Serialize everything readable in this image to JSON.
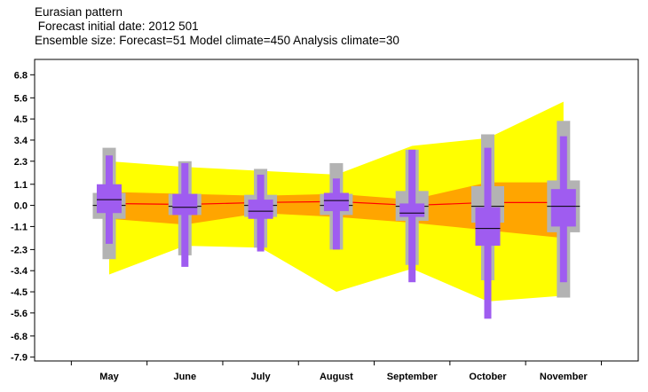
{
  "titles": {
    "line1": "Eurasian pattern",
    "line2": " Forecast initial date: 2012 501",
    "line3": "Ensemble size: Forecast=51 Model climate=450 Analysis climate=30"
  },
  "colors": {
    "climate_outer": "#ffff00",
    "climate_inner": "#ffa500",
    "median_line": "#ff0000",
    "analysis_box": "#b3b3b3",
    "forecast_box": "#9f5cf0",
    "median_tick": "#000000"
  },
  "chart_data": {
    "type": "box",
    "categories": [
      "May",
      "June",
      "July",
      "August",
      "September",
      "October",
      "November"
    ],
    "ylim": [
      -8.1,
      7.6
    ],
    "yticks": [
      6.8,
      5.6,
      4.5,
      3.4,
      2.3,
      1.1,
      0.0,
      -1.1,
      -2.3,
      -3.4,
      -4.5,
      -5.6,
      -6.8,
      -7.9
    ],
    "ytick_labels": [
      "6.8",
      "5.6",
      "4.5",
      "3.4",
      "2.3",
      "1.1",
      "0.0",
      "-1.1",
      "-2.3",
      "-3.4",
      "-4.5",
      "-5.6",
      "-6.8",
      "-7.9"
    ],
    "model_climate": {
      "outer_upper": [
        2.3,
        2.0,
        1.8,
        1.6,
        3.1,
        3.5,
        5.4
      ],
      "outer_lower": [
        -3.6,
        -2.1,
        -2.2,
        -4.5,
        -3.3,
        -5.0,
        -4.7
      ],
      "inner_upper": [
        0.7,
        0.6,
        0.5,
        0.6,
        0.3,
        1.2,
        1.2
      ],
      "inner_lower": [
        -0.7,
        -1.0,
        -0.4,
        -0.6,
        -0.9,
        -1.3,
        -1.7
      ],
      "median": [
        0.1,
        0.05,
        0.15,
        0.2,
        0.0,
        0.15,
        0.15
      ]
    },
    "analysis_climate": {
      "whisker_low": [
        -2.8,
        -2.6,
        -2.2,
        -2.3,
        -3.1,
        -3.9,
        -4.8
      ],
      "box_low": [
        -0.7,
        -0.5,
        -0.6,
        -0.5,
        -0.8,
        -0.9,
        -1.4
      ],
      "median": [
        0.0,
        -0.05,
        0.0,
        0.0,
        -0.05,
        -0.05,
        -0.05
      ],
      "box_high": [
        0.65,
        0.6,
        0.55,
        0.6,
        0.75,
        1.0,
        1.3
      ],
      "whisker_high": [
        3.0,
        2.3,
        1.9,
        2.2,
        2.9,
        3.7,
        4.4
      ]
    },
    "forecast": {
      "whisker_low": [
        -2.0,
        -3.2,
        -2.4,
        -2.3,
        -4.0,
        -5.9,
        -4.0
      ],
      "box_low": [
        -0.4,
        -0.5,
        -0.7,
        -0.3,
        -0.6,
        -2.1,
        -1.1
      ],
      "median": [
        0.3,
        -0.1,
        -0.3,
        0.25,
        -0.4,
        -1.2,
        -0.05
      ],
      "box_high": [
        1.1,
        0.6,
        0.3,
        0.65,
        0.1,
        -0.1,
        0.85
      ],
      "whisker_high": [
        2.6,
        2.2,
        1.6,
        1.4,
        2.9,
        3.0,
        3.6
      ]
    }
  }
}
